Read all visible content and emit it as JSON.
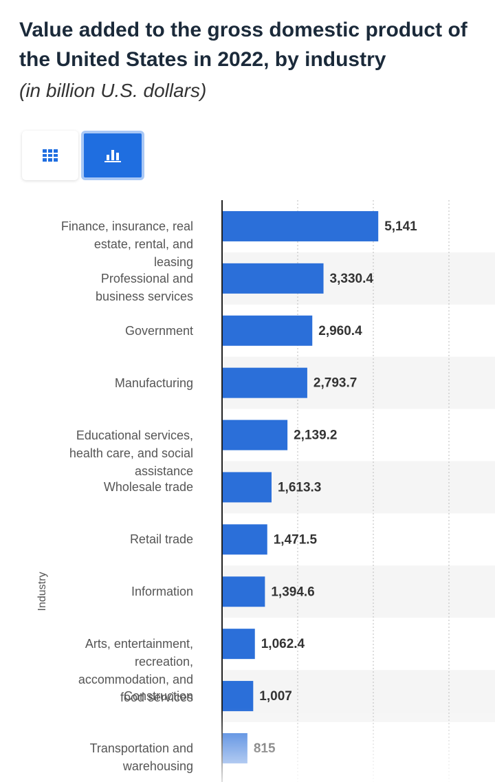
{
  "chart_data": {
    "type": "bar",
    "orientation": "horizontal",
    "title": "Value added to the gross domestic product of the United States in 2022, by industry",
    "subtitle": "(in billion U.S. dollars)",
    "y_axis_title": "Industry",
    "categories": [
      "Finance, insurance, real estate, rental, and leasing",
      "Professional and business services",
      "Government",
      "Manufacturing",
      "Educational services, health care, and social assistance",
      "Wholesale trade",
      "Retail trade",
      "Information",
      "Arts, entertainment, recreation, accommodation, and food services",
      "Construction",
      "Transportation and warehousing"
    ],
    "values": [
      5141,
      3330.4,
      2960.4,
      2793.7,
      2139.2,
      1613.3,
      1471.5,
      1394.6,
      1062.4,
      1007,
      815
    ],
    "value_labels": [
      "5,141",
      "3,330.4",
      "2,960.4",
      "2,793.7",
      "2,139.2",
      "1,613.3",
      "1,471.5",
      "1,394.6",
      "1,062.4",
      "1,007",
      "815"
    ],
    "color": "#2b6fd9",
    "xlim": [
      0,
      7500
    ],
    "xticks": [
      0,
      2500,
      5000,
      7500
    ],
    "grid": true
  }
}
